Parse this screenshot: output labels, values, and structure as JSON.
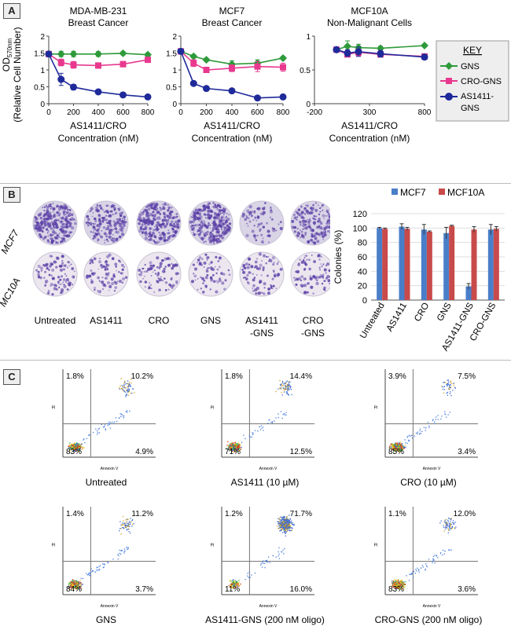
{
  "panels": {
    "A": "A",
    "B": "B",
    "C": "C"
  },
  "colors": {
    "GNS": "#2e9a3a",
    "CRO-GNS": "#e8398f",
    "AS1411-GNS": "#1f2a9a",
    "MCF7": "#4a7ec8",
    "MCF10A": "#c84a4a",
    "crystal_violet": "#5a3fa6"
  },
  "panelA": {
    "ylabel_line1": "OD",
    "ylabel_sub": "570nm",
    "ylabel_line2": "(Relative Cell Number)",
    "key": {
      "title": "KEY",
      "items": [
        "GNS",
        "CRO-GNS",
        "AS1411-",
        "GNS"
      ]
    }
  },
  "chart_data": [
    {
      "type": "line",
      "title": "MDA-MB-231",
      "subtitle": "Breast Cancer",
      "xlabel": "AS1411/CRO",
      "xlabel2": "Concentration (nM)",
      "xlim": [
        0,
        800
      ],
      "ylim": [
        0,
        2
      ],
      "xticks": [
        0,
        200,
        400,
        600,
        800
      ],
      "yticks": [
        0,
        0.5,
        1,
        1.5,
        2
      ],
      "yticklabels": [
        "0",
        "0.5",
        "1",
        "1.5",
        "2"
      ],
      "series": [
        {
          "name": "GNS",
          "x": [
            0,
            100,
            200,
            400,
            600,
            800
          ],
          "y": [
            1.47,
            1.47,
            1.47,
            1.47,
            1.49,
            1.45
          ],
          "err": [
            0.05,
            0.08,
            0.08,
            0.07,
            0.05,
            0.05
          ]
        },
        {
          "name": "CRO-GNS",
          "x": [
            0,
            100,
            200,
            400,
            600,
            800
          ],
          "y": [
            1.47,
            1.22,
            1.15,
            1.13,
            1.17,
            1.3
          ],
          "err": [
            0.05,
            0.1,
            0.1,
            0.08,
            0.08,
            0.07
          ]
        },
        {
          "name": "AS1411-GNS",
          "x": [
            0,
            100,
            200,
            400,
            600,
            800
          ],
          "y": [
            1.47,
            0.72,
            0.49,
            0.35,
            0.26,
            0.2
          ],
          "err": [
            0.05,
            0.18,
            0.08,
            0.04,
            0.02,
            0.02
          ]
        }
      ]
    },
    {
      "type": "line",
      "title": "MCF7",
      "subtitle": "Breast Cancer",
      "xlabel": "AS1411/CRO",
      "xlabel2": "Concentration (nM)",
      "xlim": [
        0,
        800
      ],
      "ylim": [
        0,
        2
      ],
      "xticks": [
        0,
        200,
        400,
        600,
        800
      ],
      "yticks": [
        0,
        0.5,
        1,
        1.5,
        2
      ],
      "yticklabels": [
        "0",
        "0.5",
        "1",
        "1.5",
        "2"
      ],
      "series": [
        {
          "name": "GNS",
          "x": [
            0,
            100,
            200,
            400,
            600,
            800
          ],
          "y": [
            1.55,
            1.4,
            1.3,
            1.17,
            1.2,
            1.35
          ],
          "err": [
            0.04,
            0.05,
            0.05,
            0.1,
            0.1,
            0.05
          ]
        },
        {
          "name": "CRO-GNS",
          "x": [
            0,
            100,
            200,
            400,
            600,
            800
          ],
          "y": [
            1.55,
            1.2,
            1.0,
            1.05,
            1.1,
            1.08
          ],
          "err": [
            0.04,
            0.1,
            0.05,
            0.1,
            0.15,
            0.12
          ]
        },
        {
          "name": "AS1411-GNS",
          "x": [
            0,
            100,
            200,
            400,
            600,
            800
          ],
          "y": [
            1.55,
            0.6,
            0.45,
            0.38,
            0.17,
            0.2
          ],
          "err": [
            0.04,
            0.03,
            0.03,
            0.03,
            0.05,
            0.07
          ]
        }
      ]
    },
    {
      "type": "line",
      "title": "MCF10A",
      "subtitle": "Non-Malignant  Cells",
      "xlabel": "AS1411/CRO",
      "xlabel2": "Concentration (nM)",
      "xlim": [
        -200,
        800
      ],
      "ylim": [
        0,
        1
      ],
      "xticks": [
        -200,
        300,
        800
      ],
      "yticks": [
        0,
        0.5,
        1
      ],
      "yticklabels": [
        "0",
        "0.5",
        "1"
      ],
      "series": [
        {
          "name": "GNS",
          "x": [
            0,
            100,
            200,
            400,
            800
          ],
          "y": [
            0.8,
            0.85,
            0.83,
            0.82,
            0.86
          ],
          "err": [
            0.03,
            0.08,
            0.05,
            0.03,
            0.02
          ]
        },
        {
          "name": "CRO-GNS",
          "x": [
            0,
            100,
            200,
            400,
            800
          ],
          "y": [
            0.8,
            0.73,
            0.76,
            0.73,
            0.7
          ],
          "err": [
            0.03,
            0.04,
            0.05,
            0.04,
            0.03
          ]
        },
        {
          "name": "AS1411-GNS",
          "x": [
            0,
            100,
            200,
            400,
            800
          ],
          "y": [
            0.8,
            0.75,
            0.77,
            0.74,
            0.69
          ],
          "err": [
            0.03,
            0.05,
            0.07,
            0.05,
            0.02
          ]
        }
      ]
    },
    {
      "type": "bar",
      "ylabel": "Colonies (%)",
      "ylim": [
        0,
        120
      ],
      "yticks": [
        0,
        20,
        40,
        60,
        80,
        100,
        120
      ],
      "categories": [
        "Untreated",
        "AS1411",
        "CRO",
        "GNS",
        "AS1411-GNS",
        "CRO-GNS"
      ],
      "series": [
        {
          "name": "MCF7",
          "values": [
            100,
            102,
            98,
            93,
            19,
            98
          ],
          "err": [
            1,
            4,
            7,
            8,
            4,
            7
          ]
        },
        {
          "name": "MCF10A",
          "values": [
            99,
            99,
            95,
            103,
            98,
            99
          ],
          "err": [
            1,
            2,
            1,
            1,
            4,
            3
          ]
        }
      ]
    }
  ],
  "panelB": {
    "row_labels": [
      "MCF7",
      "MC10A"
    ],
    "col_labels": [
      [
        "Untreated"
      ],
      [
        "AS1411"
      ],
      [
        "CRO"
      ],
      [
        "GNS"
      ],
      [
        "AS1411",
        "-GNS"
      ],
      [
        "CRO",
        "-GNS"
      ]
    ],
    "mcf7_density": [
      0.95,
      0.65,
      0.9,
      0.95,
      0.25,
      0.6
    ],
    "mc10a_density": [
      0.35,
      0.3,
      0.3,
      0.25,
      0.3,
      0.3
    ]
  },
  "panelC": {
    "xaxis": "Annexin V",
    "yaxis": "PI",
    "plots": [
      {
        "label": "Untreated",
        "q": [
          "1.8%",
          "10.2%",
          "83%",
          "4.9%"
        ],
        "upper_frac": 0.12
      },
      {
        "label": "AS1411 (10 µM)",
        "q": [
          "1.8%",
          "14.4%",
          "71%",
          "12.5%"
        ],
        "upper_frac": 0.16
      },
      {
        "label": "CRO (10 µM)",
        "q": [
          "3.9%",
          "7.5%",
          "85%",
          "3.4%"
        ],
        "upper_frac": 0.1
      },
      {
        "label": "GNS",
        "q": [
          "1.4%",
          "11.2%",
          "84%",
          "3.7%"
        ],
        "upper_frac": 0.12
      },
      {
        "label": "AS1411-GNS (200 nM oligo)",
        "q": [
          "1.2%",
          "71.7%",
          "11%",
          "16.0%"
        ],
        "upper_frac": 0.72
      },
      {
        "label": "CRO-GNS (200 nM oligo)",
        "q": [
          "1.1%",
          "12.0%",
          "83%",
          "3.6%"
        ],
        "upper_frac": 0.13
      }
    ]
  }
}
